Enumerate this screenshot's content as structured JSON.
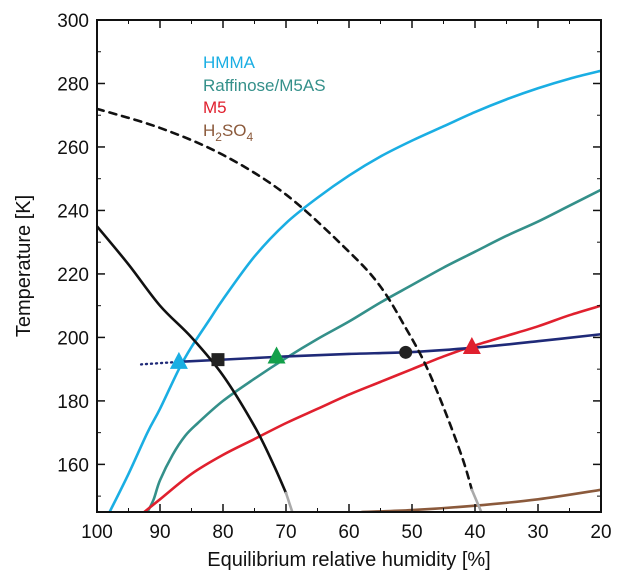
{
  "chart_data": {
    "type": "line",
    "xlabel": "Equilibrium relative humidity [%]",
    "ylabel": "Temperature [K]",
    "xlim": [
      100,
      20
    ],
    "ylim": [
      145,
      300
    ],
    "x_reversed": true,
    "xticks": [
      100,
      90,
      80,
      70,
      60,
      50,
      40,
      30,
      20
    ],
    "yticks": [
      160,
      180,
      200,
      220,
      240,
      260,
      280,
      300
    ],
    "grid": false,
    "legend": {
      "placement": "top-left",
      "entries": [
        {
          "label": "HMMA",
          "color": "#1aaee3"
        },
        {
          "label": "Raffinose/M5AS",
          "color": "#34908a"
        },
        {
          "label": "M5",
          "color": "#e0202e"
        },
        {
          "label": "H",
          "sub1": "2",
          "mid": "SO",
          "sub2": "4",
          "color": "#8b5a3c"
        }
      ]
    },
    "series": [
      {
        "name": "HMMA",
        "color": "#1aaee3",
        "style": "solid",
        "x": [
          98,
          95,
          92,
          90,
          87,
          85,
          82,
          80,
          75,
          70,
          65,
          60,
          55,
          50,
          45,
          40,
          35,
          30,
          25,
          20
        ],
        "y": [
          145,
          157,
          170,
          177.5,
          190,
          197,
          206,
          212,
          225.5,
          236,
          244,
          251,
          257,
          262,
          266.5,
          271,
          275,
          278.5,
          281.5,
          284
        ]
      },
      {
        "name": "Raffinose/M5AS",
        "color": "#34908a",
        "style": "solid",
        "x": [
          92,
          91,
          90,
          88,
          86,
          84,
          80,
          75,
          70,
          65,
          60,
          55,
          50,
          45,
          40,
          35,
          30,
          25,
          20
        ],
        "y": [
          145,
          149,
          155,
          163,
          169,
          173,
          180,
          187,
          193.5,
          199.5,
          205,
          211,
          216.5,
          222,
          227,
          232,
          236.5,
          241.5,
          246.5
        ]
      },
      {
        "name": "M5",
        "color": "#e0202e",
        "style": "solid",
        "x": [
          92.5,
          90,
          85,
          80,
          75,
          70,
          65,
          60,
          55,
          50,
          45,
          40,
          35,
          30,
          25,
          20
        ],
        "y": [
          145,
          149,
          157,
          163,
          168,
          173,
          177.5,
          182,
          186,
          190,
          194,
          197.5,
          200.5,
          203.5,
          207,
          210
        ]
      },
      {
        "name": "H2SO4",
        "color": "#8b5a3c",
        "style": "solid",
        "x": [
          58,
          50,
          40,
          30,
          20
        ],
        "y": [
          145,
          145.6,
          147,
          149,
          152
        ]
      },
      {
        "name": "",
        "color": "#1f2a78",
        "style": "solid",
        "x": [
          87,
          80,
          70,
          60,
          50,
          40,
          30,
          20
        ],
        "y": [
          192.3,
          193,
          194,
          194.8,
          195.4,
          196.8,
          198.8,
          201
        ]
      },
      {
        "name": "",
        "color": "#1f2a78",
        "style": "dotted",
        "x": [
          93,
          87
        ],
        "y": [
          191.5,
          192.3
        ]
      },
      {
        "name": "",
        "color": "#111111",
        "style": "solid",
        "x": [
          100,
          95,
          90,
          85,
          80,
          75,
          72,
          70
        ],
        "y": [
          235,
          223,
          210,
          200,
          188,
          172,
          160,
          151
        ]
      },
      {
        "name": "",
        "color": "#aaaaaa",
        "style": "solid",
        "x": [
          70,
          69
        ],
        "y": [
          151,
          145
        ]
      },
      {
        "name": "",
        "color": "#111111",
        "style": "dashed",
        "x": [
          100,
          90,
          80,
          70,
          60,
          55,
          51,
          48,
          45,
          42,
          40.5
        ],
        "y": [
          272,
          266,
          257.5,
          245,
          227,
          216,
          203,
          192,
          178,
          162,
          152
        ]
      },
      {
        "name": "",
        "color": "#aaaaaa",
        "style": "solid",
        "x": [
          40.5,
          39
        ],
        "y": [
          152,
          145
        ]
      }
    ],
    "markers": [
      {
        "x": 87,
        "y": 192.3,
        "shape": "triangle",
        "color": "#1aaee3"
      },
      {
        "x": 80.8,
        "y": 193,
        "shape": "square",
        "color": "#222222"
      },
      {
        "x": 71.5,
        "y": 194,
        "shape": "triangle",
        "color": "#13a04a"
      },
      {
        "x": 51,
        "y": 195.3,
        "shape": "circle",
        "color": "#222222"
      },
      {
        "x": 40.5,
        "y": 197,
        "shape": "triangle",
        "color": "#e0202e"
      }
    ]
  }
}
